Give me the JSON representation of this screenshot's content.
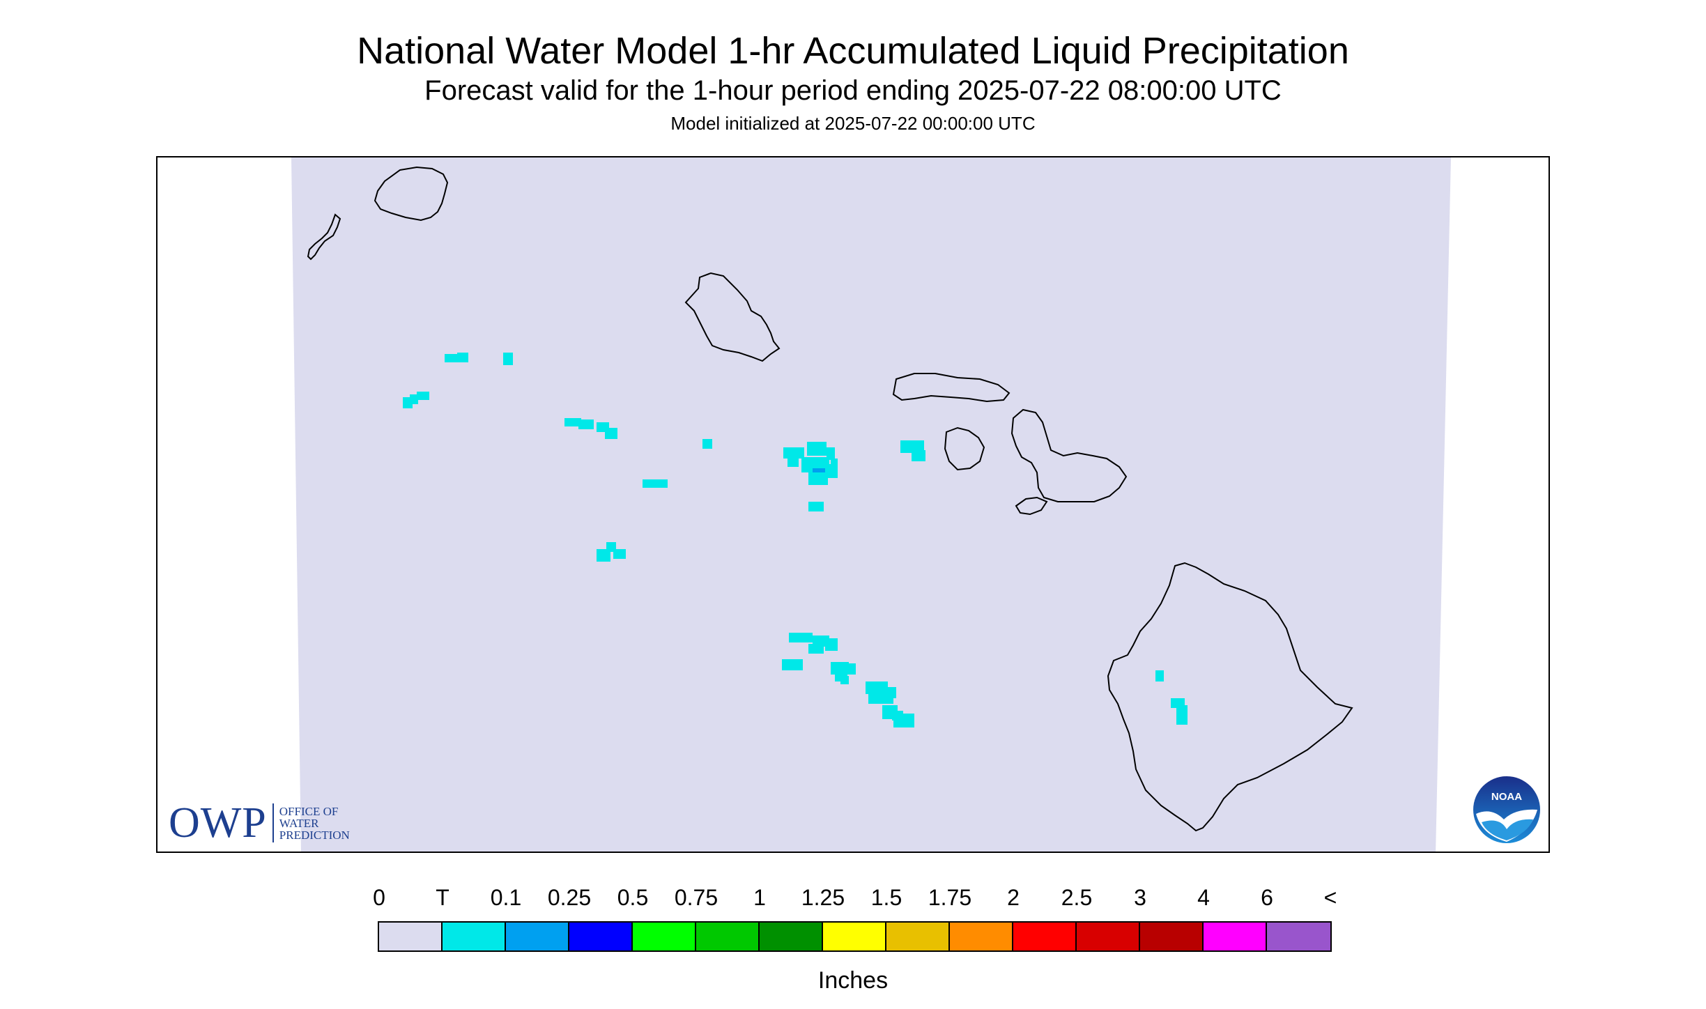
{
  "title": "National Water Model 1-hr Accumulated Liquid Precipitation",
  "subtitle": "Forecast valid for the 1-hour period ending 2025-07-22 08:00:00 UTC",
  "init_line": "Model initialized at 2025-07-22 00:00:00 UTC",
  "owp_logo": {
    "mark": "OWP",
    "line1": "OFFICE OF",
    "line2": "WATER",
    "line3": "PREDICTION"
  },
  "noaa_logo": {
    "mark": "NOAA",
    "icon": "noaa-seagull-logo"
  },
  "map": {
    "region": "Hawaiian Islands",
    "domain_fill": "#dcdcef",
    "trace_color": "#00e8e8",
    "light_color": "#00a0f0",
    "coastline_color": "#000000"
  },
  "legend": {
    "labels": [
      "0",
      "T",
      "0.1",
      "0.25",
      "0.5",
      "0.75",
      "1",
      "1.25",
      "1.5",
      "1.75",
      "2",
      "2.5",
      "3",
      "4",
      "6",
      "<"
    ],
    "colors": [
      "#dcdcef",
      "#00e8e8",
      "#00a0f0",
      "#0000ff",
      "#00ff00",
      "#00c800",
      "#009000",
      "#ffff00",
      "#e8c000",
      "#ff8c00",
      "#ff0000",
      "#d80000",
      "#b80000",
      "#ff00ff",
      "#9955cc"
    ],
    "units": "Inches"
  }
}
